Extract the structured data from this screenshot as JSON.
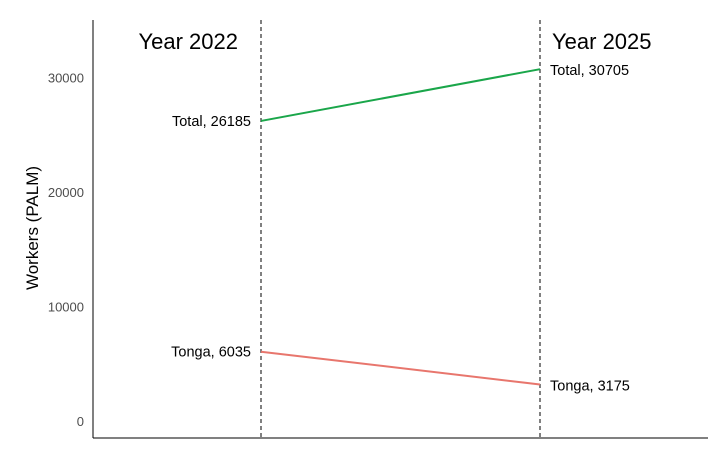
{
  "chart_data": {
    "type": "line",
    "ylabel": "Workers (PALM)",
    "ylim": [
      -1500,
      35000
    ],
    "y_ticks": [
      0,
      10000,
      20000,
      30000
    ],
    "grid": false,
    "x": [
      "Year 2022",
      "Year 2025"
    ],
    "series": [
      {
        "name": "Total",
        "color": "#1aa64a",
        "values": [
          26185,
          30705
        ],
        "labels": [
          "Total, 26185",
          "Total, 30705"
        ]
      },
      {
        "name": "Tonga",
        "color": "#e8766d",
        "values": [
          6035,
          3175
        ],
        "labels": [
          "Tonga, 6035",
          "Tonga, 3175"
        ]
      }
    ]
  }
}
